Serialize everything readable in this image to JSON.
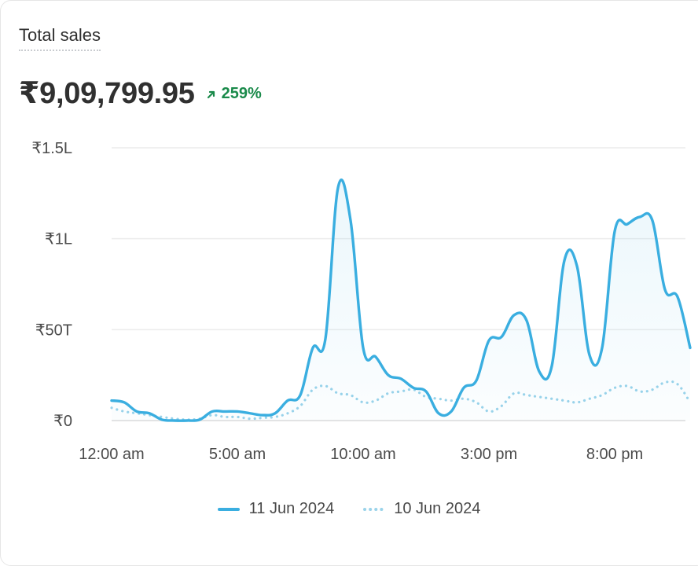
{
  "card": {
    "title": "Total sales",
    "total": "₹9,09,799.95",
    "change": "259%",
    "change_icon": "arrow-up-right-icon",
    "colors": {
      "current": "#3aaee0",
      "previous": "#9ad3ea",
      "positive": "#1a8a4a"
    }
  },
  "chart_data": {
    "type": "area",
    "x_ticks": [
      "12:00 am",
      "5:00 am",
      "10:00 am",
      "3:00 pm",
      "8:00 pm"
    ],
    "y_ticks": [
      "₹0",
      "₹50T",
      "₹1L",
      "₹1.5L"
    ],
    "ylim": [
      0,
      150000
    ],
    "grid": true,
    "legend_position": "bottom",
    "x_hours": [
      0,
      0.5,
      1,
      1.5,
      2,
      2.5,
      3,
      3.5,
      4,
      4.5,
      5,
      5.5,
      6,
      6.5,
      7,
      7.5,
      8,
      8.5,
      9,
      9.5,
      10,
      10.5,
      11,
      11.5,
      12,
      12.5,
      13,
      13.5,
      14,
      14.5,
      15,
      15.5,
      16,
      16.5,
      17,
      17.5,
      18,
      18.5,
      19,
      19.5,
      20,
      20.5,
      21,
      21.5,
      22,
      22.5,
      23
    ],
    "series": [
      {
        "name": "11 Jun 2024",
        "style": "solid",
        "values": [
          11000,
          10000,
          5000,
          4000,
          500,
          0,
          0,
          500,
          5000,
          5000,
          5000,
          4000,
          3000,
          4000,
          11000,
          14000,
          40000,
          45000,
          128000,
          110000,
          40000,
          35000,
          25000,
          23000,
          18000,
          16000,
          4000,
          5000,
          18000,
          22000,
          44000,
          46000,
          58000,
          55000,
          27000,
          30000,
          88000,
          85000,
          36000,
          40000,
          104000,
          108000,
          112000,
          110000,
          72000,
          68000,
          40000
        ]
      },
      {
        "name": "10 Jun 2024",
        "style": "dotted",
        "values": [
          7000,
          5000,
          4000,
          3000,
          2000,
          1000,
          500,
          1000,
          3000,
          2000,
          2000,
          1000,
          1500,
          2000,
          4000,
          8000,
          17000,
          19000,
          15000,
          14000,
          10000,
          11000,
          15000,
          16000,
          17000,
          13000,
          12000,
          11000,
          12000,
          10000,
          5000,
          8000,
          15000,
          14000,
          13000,
          12000,
          11000,
          10000,
          12000,
          14000,
          18000,
          19000,
          16000,
          17000,
          21000,
          20000,
          10000
        ]
      }
    ]
  }
}
